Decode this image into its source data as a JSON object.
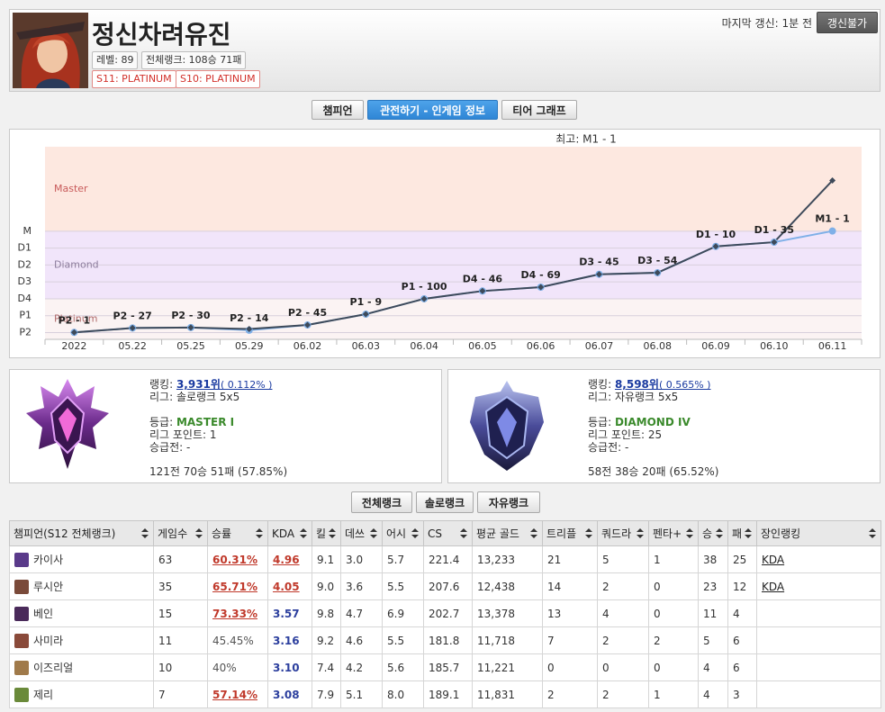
{
  "header": {
    "name": "정신차려유진",
    "level": "레벨: 89",
    "total_rank": "전체랭크: 108승 71패",
    "seasons": [
      "S11: PLATINUM",
      "S10: PLATINUM"
    ],
    "last_update": "마지막 갱신: 1분 전",
    "refresh_button": "갱신불가"
  },
  "tabs": [
    "챔피언",
    "관전하기 - 인게임 정보",
    "티어 그래프"
  ],
  "chart_data": {
    "type": "line",
    "title": "최고: M1 - 1",
    "categories": [
      "2022",
      "05.22",
      "05.25",
      "05.29",
      "06.02",
      "06.03",
      "06.04",
      "06.05",
      "06.06",
      "06.07",
      "06.08",
      "06.09",
      "06.10",
      "06.11"
    ],
    "series": [
      {
        "color": "#7fb0e8",
        "values": [
          0.01,
          0.27,
          0.3,
          0.14,
          0.45,
          1.09,
          2.0,
          2.46,
          2.69,
          3.45,
          3.54,
          5.1,
          5.35,
          6.01
        ],
        "value_labels": [
          "P2 - 1",
          "P2 - 27",
          "P2 - 30",
          "P2 - 14",
          "P2 - 45",
          "P1 - 9",
          "P1 - 100",
          "D4 - 46",
          "D4 - 69",
          "D3 - 45",
          "D3 - 54",
          "D1 - 10",
          "D1 - 35",
          "M1 - 1"
        ]
      },
      {
        "color": "#3e4a5a",
        "values": [
          0.01,
          0.27,
          0.3,
          0.21,
          0.45,
          1.09,
          2.0,
          2.46,
          2.69,
          3.45,
          3.54,
          5.1,
          5.35,
          9.0
        ]
      }
    ],
    "ylim": [
      -0.4,
      11
    ],
    "yticks": [
      {
        "value": 0,
        "label": "P2"
      },
      {
        "value": 1,
        "label": "P1"
      },
      {
        "value": 2,
        "label": "D4"
      },
      {
        "value": 3,
        "label": "D3"
      },
      {
        "value": 4,
        "label": "D2"
      },
      {
        "value": 5,
        "label": "D1"
      },
      {
        "value": 6,
        "label": "M"
      }
    ],
    "grid": true,
    "bands": [
      {
        "label": "Master",
        "from": 6,
        "to": 11,
        "color": "#fde8e0",
        "label_color": "#c85a5a"
      },
      {
        "label": "Diamond",
        "from": 2,
        "to": 6,
        "color": "#f1e5fa",
        "label_color": "#8c7c9c"
      },
      {
        "label": "Platinum",
        "from": -0.4,
        "to": 2,
        "color": "#fbf3f3",
        "label_color": "#b06a6a"
      }
    ]
  },
  "rank_cards": [
    {
      "ranking_label": "랭킹:",
      "ranking": "3,931위",
      "percent": "( 0.112% )",
      "league": "리그: 솔로랭크 5x5",
      "tier_label": "등급:",
      "tier": "MASTER I",
      "points": "리그 포인트: 1",
      "promotion": "승급전: -",
      "record": "121전 70승 51패 (57.85%)"
    },
    {
      "ranking_label": "랭킹:",
      "ranking": "8,598위",
      "percent": "( 0.565% )",
      "league": "리그: 자유랭크 5x5",
      "tier_label": "등급:",
      "tier": "DIAMOND IV",
      "points": "리그 포인트: 25",
      "promotion": "승급전: -",
      "record": "58전 38승 20패 (65.52%)"
    }
  ],
  "rank_tabs": [
    "전체랭크",
    "솔로랭크",
    "자유랭크"
  ],
  "table": {
    "headers": [
      "챔피언(S12 전체랭크)",
      "게임수",
      "승률",
      "KDA",
      "킬",
      "데쓰",
      "어시",
      "CS",
      "평균 골드",
      "트리플",
      "쿼드라",
      "펜타+",
      "승",
      "패",
      "장인랭킹"
    ],
    "rows": [
      [
        "카이사",
        "63",
        "60.31%",
        "4.96",
        "9.1",
        "3.0",
        "5.7",
        "221.4",
        "13,233",
        "21",
        "5",
        "1",
        "38",
        "25",
        "KDA"
      ],
      [
        "루시안",
        "35",
        "65.71%",
        "4.05",
        "9.0",
        "3.6",
        "5.5",
        "207.6",
        "12,438",
        "14",
        "2",
        "0",
        "23",
        "12",
        "KDA"
      ],
      [
        "베인",
        "15",
        "73.33%",
        "3.57",
        "9.8",
        "4.7",
        "6.9",
        "202.7",
        "13,378",
        "13",
        "4",
        "0",
        "11",
        "4"
      ],
      [
        "사미라",
        "11",
        "45.45%",
        "3.16",
        "9.2",
        "4.6",
        "5.5",
        "181.8",
        "11,718",
        "7",
        "2",
        "2",
        "5",
        "6"
      ],
      [
        "이즈리얼",
        "10",
        "40%",
        "3.10",
        "7.4",
        "4.2",
        "5.6",
        "185.7",
        "11,221",
        "0",
        "0",
        "0",
        "4",
        "6"
      ],
      [
        "제리",
        "7",
        "57.14%",
        "3.08",
        "7.9",
        "5.1",
        "8.0",
        "189.1",
        "11,831",
        "2",
        "2",
        "1",
        "4",
        "3"
      ]
    ]
  }
}
